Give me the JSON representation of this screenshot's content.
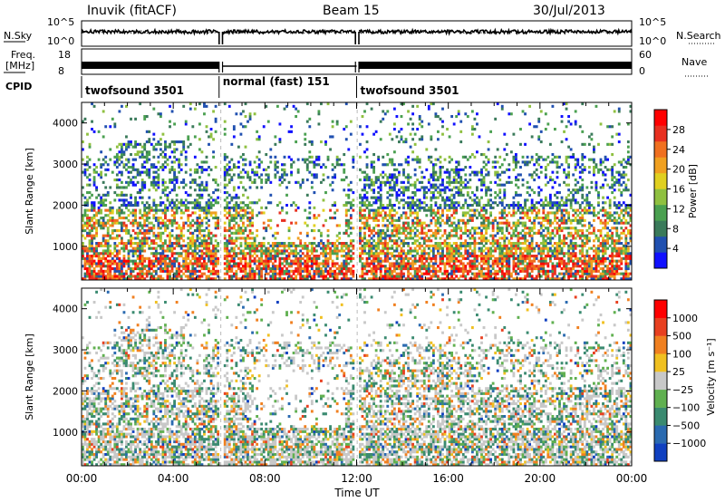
{
  "header": {
    "station": "Inuvik  (fitACF)",
    "beam": "Beam 15",
    "date": "30/Jul/2013"
  },
  "chart_data": [
    {
      "type": "line",
      "panel": "noise",
      "left_label": "N.Sky",
      "right_label": "N.Search",
      "left_ticks": [
        "10^5",
        "10^0"
      ],
      "right_ticks": [
        "10^5",
        "10^0"
      ],
      "scale": "log",
      "gaps_hours": [
        [
          6.0,
          6.15
        ],
        [
          11.95,
          12.1
        ]
      ]
    },
    {
      "type": "line",
      "panel": "frequency",
      "left_label": "Freq.",
      "left_label_unit": "[MHz]",
      "right_label": "Nave",
      "left_ticks": [
        "18",
        "8"
      ],
      "right_ticks": [
        "60",
        "0"
      ],
      "ylim_left": [
        8,
        18
      ],
      "ylim_right": [
        0,
        60
      ]
    },
    {
      "type": "table",
      "panel": "cpid",
      "label": "CPID",
      "segments": [
        {
          "start": 0,
          "end": 6,
          "name": "twofsound 3501"
        },
        {
          "start": 6,
          "end": 12,
          "name": "normal (fast) 151"
        },
        {
          "start": 12,
          "end": 24,
          "name": "twofsound 3501"
        }
      ]
    },
    {
      "type": "heatmap",
      "panel": "power",
      "ylabel": "Slant Range [km]",
      "y_ticks": [
        1000,
        2000,
        3000,
        4000
      ],
      "ylim": [
        180,
        4500
      ],
      "xlim_hours": [
        0,
        24
      ],
      "colorbar_label": "Power [dB]",
      "colorbar_ticks": [
        4,
        8,
        12,
        16,
        20,
        24,
        28
      ],
      "colorbar_colors": [
        "#1010ff",
        "#2050b0",
        "#3a7a5a",
        "#4aa050",
        "#8fc040",
        "#e0d020",
        "#f0a020",
        "#f07020",
        "#e83020",
        "#ff0000"
      ]
    },
    {
      "type": "heatmap",
      "panel": "velocity",
      "ylabel": "Slant Range [km]",
      "y_ticks": [
        1000,
        2000,
        3000,
        4000
      ],
      "ylim": [
        180,
        4500
      ],
      "xlim_hours": [
        0,
        24
      ],
      "x_ticks": [
        "00:00",
        "04:00",
        "08:00",
        "12:00",
        "16:00",
        "20:00",
        "00:00"
      ],
      "xlabel": "Time UT",
      "colorbar_label": "Velocity [m s⁻¹]",
      "colorbar_ticks": [
        "1000",
        "500",
        "100",
        "25",
        "−25",
        "−100",
        "−500",
        "−1000"
      ],
      "colorbar_colors": [
        "#1040c0",
        "#2a6ab0",
        "#3a8a70",
        "#60b050",
        "#c8c8c8",
        "#f0c020",
        "#f08020",
        "#e84020",
        "#ff0000"
      ]
    }
  ]
}
